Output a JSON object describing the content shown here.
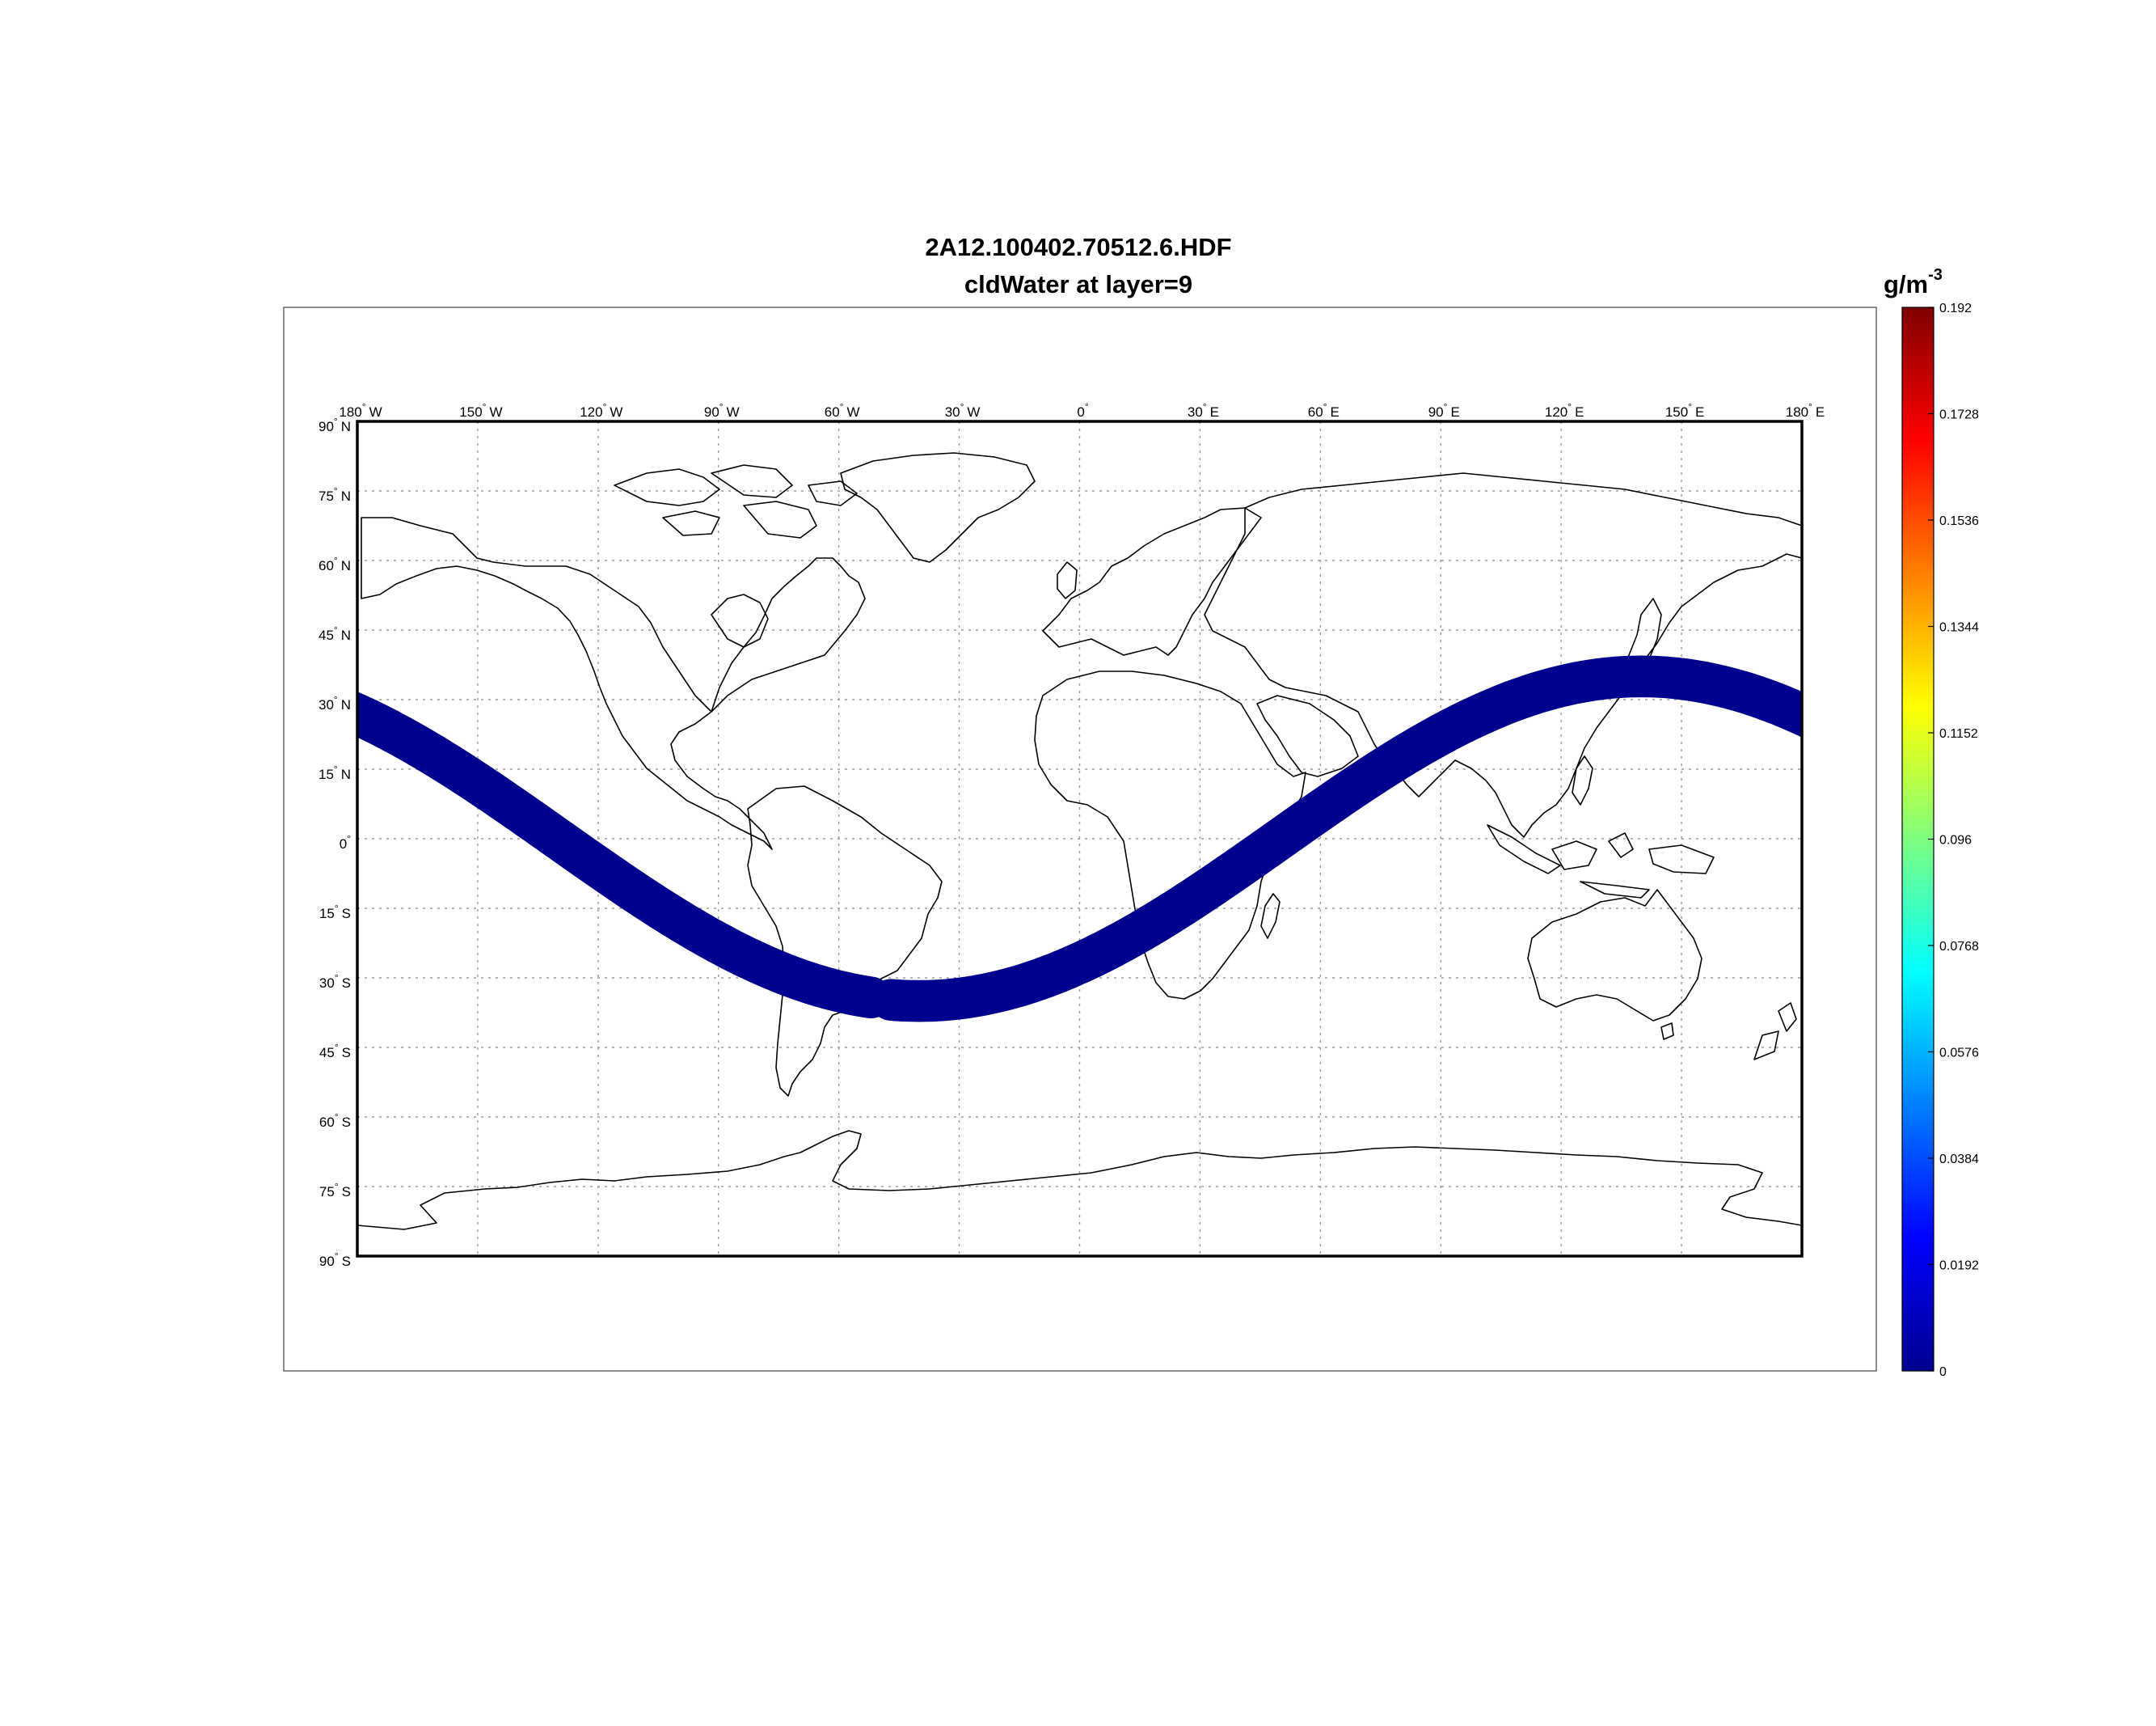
{
  "title": {
    "line1": "2A12.100402.70512.6.HDF",
    "line2": "cldWater at layer=9"
  },
  "map": {
    "lon_ticks": [
      {
        "deg": "180",
        "hemi": "W"
      },
      {
        "deg": "150",
        "hemi": "W"
      },
      {
        "deg": "120",
        "hemi": "W"
      },
      {
        "deg": "90",
        "hemi": "W"
      },
      {
        "deg": "60",
        "hemi": "W"
      },
      {
        "deg": "30",
        "hemi": "W"
      },
      {
        "deg": "0",
        "hemi": ""
      },
      {
        "deg": "30",
        "hemi": "E"
      },
      {
        "deg": "60",
        "hemi": "E"
      },
      {
        "deg": "90",
        "hemi": "E"
      },
      {
        "deg": "120",
        "hemi": "E"
      },
      {
        "deg": "150",
        "hemi": "E"
      },
      {
        "deg": "180",
        "hemi": "E"
      }
    ],
    "lat_ticks": [
      {
        "deg": "90",
        "hemi": "N"
      },
      {
        "deg": "75",
        "hemi": "N"
      },
      {
        "deg": "60",
        "hemi": "N"
      },
      {
        "deg": "45",
        "hemi": "N"
      },
      {
        "deg": "30",
        "hemi": "N"
      },
      {
        "deg": "15",
        "hemi": "N"
      },
      {
        "deg": "0",
        "hemi": ""
      },
      {
        "deg": "15",
        "hemi": "S"
      },
      {
        "deg": "30",
        "hemi": "S"
      },
      {
        "deg": "45",
        "hemi": "S"
      },
      {
        "deg": "60",
        "hemi": "S"
      },
      {
        "deg": "75",
        "hemi": "S"
      },
      {
        "deg": "90",
        "hemi": "S"
      }
    ],
    "lon_range": [
      -180,
      180
    ],
    "lat_range": [
      -90,
      90
    ],
    "grid": true,
    "swath": {
      "color": "#00008f",
      "width_deg": 9,
      "inclination_deg": 35,
      "peak_lon": 140,
      "gap_lon": [
        -52,
        -47
      ],
      "value": 0
    }
  },
  "colorbar": {
    "unit_base": "g/m",
    "unit_exp": "-3",
    "ticks": [
      "0.192",
      "0.1728",
      "0.1536",
      "0.1344",
      "0.1152",
      "0.096",
      "0.0768",
      "0.0576",
      "0.0384",
      "0.0192",
      "0"
    ],
    "range": [
      0,
      0.192
    ],
    "colormap": "jet"
  }
}
